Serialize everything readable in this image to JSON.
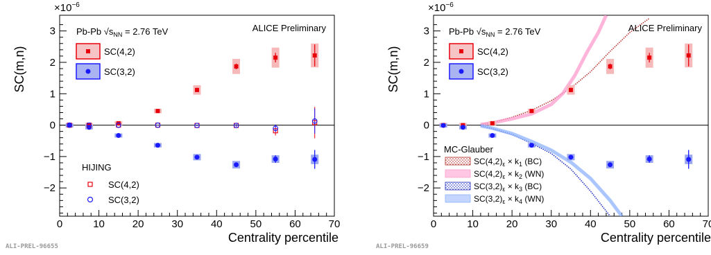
{
  "chart_data": [
    {
      "type": "scatter",
      "xlabel": "Centrality percentile",
      "ylabel": "SC(m,n)",
      "exponent_label": "×10",
      "exponent_power": "−6",
      "xlim": [
        0,
        70
      ],
      "ylim": [
        -2.9,
        3.5
      ],
      "xticks": [
        "0",
        "10",
        "20",
        "30",
        "40",
        "50",
        "60",
        "70"
      ],
      "yticks": [
        "−2",
        "−1",
        "0",
        "1",
        "2",
        "3"
      ],
      "collision_prefix": "Pb-Pb ",
      "sqrt_s": "√s",
      "sqrt_s_sub": "NN",
      "collision_suffix": " = 2.76 TeV",
      "experiment": "ALICE Preliminary",
      "footer_id": "ALI-PREL-96655",
      "hijing_title": "HIJING",
      "series": [
        {
          "name": "SC(4,2)",
          "kind": "data",
          "color": "#e8000b",
          "x": [
            2.5,
            7.5,
            15,
            25,
            35,
            45,
            55,
            65
          ],
          "y": [
            0.0,
            0.0,
            0.06,
            0.45,
            1.12,
            1.87,
            2.15,
            2.22
          ],
          "err": [
            0.02,
            0.03,
            0.05,
            0.05,
            0.07,
            0.09,
            0.15,
            0.35
          ],
          "syst": [
            0.02,
            0.03,
            0.05,
            0.07,
            0.15,
            0.24,
            0.32,
            0.38
          ]
        },
        {
          "name": "SC(3,2)",
          "kind": "data",
          "color": "#1a1aff",
          "x": [
            2.5,
            7.5,
            15,
            25,
            35,
            45,
            55,
            65
          ],
          "y": [
            -0.01,
            -0.07,
            -0.33,
            -0.64,
            -1.02,
            -1.26,
            -1.08,
            -1.09
          ],
          "err": [
            0.02,
            0.02,
            0.03,
            0.03,
            0.05,
            0.07,
            0.12,
            0.3
          ],
          "syst": [
            0.02,
            0.03,
            0.04,
            0.07,
            0.1,
            0.12,
            0.12,
            0.15
          ]
        },
        {
          "name": "SC(4,2)",
          "kind": "hijing",
          "color": "#e8000b",
          "x": [
            2.5,
            7.5,
            15,
            25,
            35,
            45,
            55,
            65
          ],
          "y": [
            0.0,
            0.0,
            0.0,
            0.0,
            -0.01,
            -0.01,
            -0.18,
            0.08
          ],
          "err": [
            0.01,
            0.01,
            0.01,
            0.01,
            0.02,
            0.04,
            0.15,
            0.5
          ]
        },
        {
          "name": "SC(3,2)",
          "kind": "hijing",
          "color": "#1a1aff",
          "x": [
            2.5,
            7.5,
            15,
            25,
            35,
            45,
            55,
            65
          ],
          "y": [
            0.0,
            0.0,
            0.0,
            0.0,
            -0.01,
            -0.01,
            -0.1,
            0.13
          ],
          "err": [
            0.01,
            0.01,
            0.01,
            0.01,
            0.02,
            0.04,
            0.12,
            0.4
          ]
        }
      ]
    },
    {
      "type": "scatter",
      "xlabel": "Centrality percentile",
      "ylabel": "SC(m,n)",
      "exponent_label": "×10",
      "exponent_power": "−6",
      "xlim": [
        0,
        70
      ],
      "ylim": [
        -2.9,
        3.5
      ],
      "xticks": [
        "0",
        "10",
        "20",
        "30",
        "40",
        "50",
        "60",
        "70"
      ],
      "yticks": [
        "−2",
        "−1",
        "0",
        "1",
        "2",
        "3"
      ],
      "collision_prefix": "Pb-Pb ",
      "sqrt_s": "√s",
      "sqrt_s_sub": "NN",
      "collision_suffix": " = 2.76 TeV",
      "experiment": "ALICE Preliminary",
      "footer_id": "ALI-PREL-96659",
      "glauber_title": "MC-Glauber",
      "series": [
        {
          "name": "SC(4,2)",
          "kind": "data",
          "color": "#e8000b",
          "x": [
            2.5,
            7.5,
            15,
            25,
            35,
            45,
            55,
            65
          ],
          "y": [
            0.0,
            0.0,
            0.06,
            0.45,
            1.12,
            1.87,
            2.15,
            2.22
          ],
          "err": [
            0.02,
            0.03,
            0.05,
            0.05,
            0.07,
            0.09,
            0.15,
            0.35
          ],
          "syst": [
            0.02,
            0.03,
            0.05,
            0.07,
            0.15,
            0.24,
            0.32,
            0.38
          ]
        },
        {
          "name": "SC(3,2)",
          "kind": "data",
          "color": "#1a1aff",
          "x": [
            2.5,
            7.5,
            15,
            25,
            35,
            45,
            55,
            65
          ],
          "y": [
            -0.01,
            -0.07,
            -0.33,
            -0.64,
            -1.02,
            -1.26,
            -1.08,
            -1.09
          ],
          "err": [
            0.02,
            0.02,
            0.03,
            0.03,
            0.05,
            0.07,
            0.12,
            0.3
          ],
          "syst": [
            0.02,
            0.03,
            0.04,
            0.07,
            0.1,
            0.12,
            0.12,
            0.15
          ]
        }
      ],
      "bands": [
        {
          "name": "SC(4,2)",
          "sub": "ε",
          "factor": " × k",
          "factor_sub": "1",
          "model": " (BC)",
          "color": "#b5322a",
          "style": "dotted",
          "x": [
            12,
            15,
            20,
            25,
            30,
            35,
            40,
            45,
            50,
            55
          ],
          "y": [
            0.02,
            0.09,
            0.25,
            0.47,
            0.78,
            1.18,
            1.7,
            2.35,
            2.95,
            3.4
          ]
        },
        {
          "name": "SC(4,2)",
          "sub": "ε",
          "factor": " × k",
          "factor_sub": "2",
          "model": " (WN)",
          "color": "#ff9ccd",
          "style": "band",
          "x": [
            12,
            15,
            20,
            25,
            30,
            33,
            36,
            39,
            42,
            44
          ],
          "y": [
            0.02,
            0.07,
            0.2,
            0.36,
            0.66,
            1.02,
            1.58,
            2.3,
            2.95,
            3.5
          ]
        },
        {
          "name": "SC(3,2)",
          "sub": "ε",
          "factor": " × k",
          "factor_sub": "3",
          "model": " (BC)",
          "color": "#1f2fbf",
          "style": "dotted",
          "x": [
            12,
            15,
            20,
            25,
            30,
            35,
            40,
            45
          ],
          "y": [
            -0.02,
            -0.11,
            -0.3,
            -0.58,
            -0.9,
            -1.4,
            -2.1,
            -2.9
          ]
        },
        {
          "name": "SC(3,2)",
          "sub": "ε",
          "factor": " × k",
          "factor_sub": "4",
          "model": " (WN)",
          "color": "#8fb3ff",
          "style": "band",
          "x": [
            12,
            15,
            20,
            25,
            30,
            35,
            40,
            45,
            48
          ],
          "y": [
            -0.02,
            -0.1,
            -0.27,
            -0.52,
            -0.8,
            -1.18,
            -1.7,
            -2.4,
            -2.9
          ]
        }
      ]
    }
  ]
}
